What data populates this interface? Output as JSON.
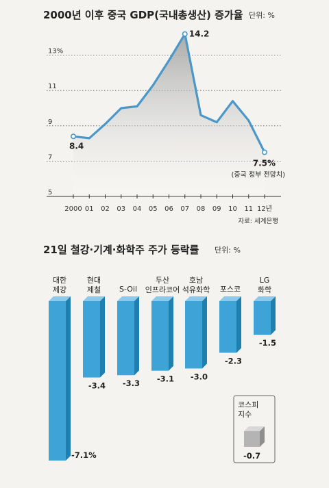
{
  "colors": {
    "line": "#4a97c8",
    "bar_front": "#3ea3d6",
    "bar_side": "#1f7fae",
    "bar_top": "#8cc9ea",
    "gray_front": "#b4b4b4",
    "gray_side": "#8e8e8e",
    "gray_top": "#d8d8d8"
  },
  "chart_data": [
    {
      "type": "line",
      "title": "2000년 이후 중국 GDP(국내총생산) 증가율",
      "unit": "단위: %",
      "x": [
        "2000",
        "01",
        "02",
        "03",
        "04",
        "05",
        "06",
        "07",
        "08",
        "09",
        "10",
        "11",
        "12년"
      ],
      "series": [
        {
          "values": [
            8.4,
            8.3,
            9.1,
            10.0,
            10.1,
            11.3,
            12.7,
            14.2,
            9.6,
            9.2,
            10.4,
            9.3,
            7.5
          ]
        }
      ],
      "yticks": [
        "5",
        "7",
        "9",
        "11",
        "13%"
      ],
      "ylim": [
        5,
        14.2
      ],
      "grid": true,
      "labels": {
        "start": "8.4",
        "peak": "14.2",
        "end": "7.5%",
        "end_note": "(중국 정부 전망치)"
      },
      "source": "자료: 세계은행"
    },
    {
      "type": "bar",
      "title": "21일 철강·기계·화학주 주가 등락률",
      "unit": "단위: %",
      "categories": [
        [
          "대한",
          "제강"
        ],
        [
          "현대",
          "제철"
        ],
        [
          "S-Oil"
        ],
        [
          "두산",
          "인프라코어"
        ],
        [
          "호남",
          "석유화학"
        ],
        [
          "포스코"
        ],
        [
          "LG",
          "화학"
        ]
      ],
      "values": [
        -7.1,
        -3.4,
        -3.3,
        -3.1,
        -3.0,
        -2.3,
        -1.5
      ],
      "value_labels": [
        "-7.1%",
        "-3.4",
        "-3.3",
        "-3.1",
        "-3.0",
        "-2.3",
        "-1.5"
      ],
      "reference": {
        "label": [
          "코스피",
          "지수"
        ],
        "value": -0.7,
        "value_label": "-0.7"
      }
    }
  ]
}
